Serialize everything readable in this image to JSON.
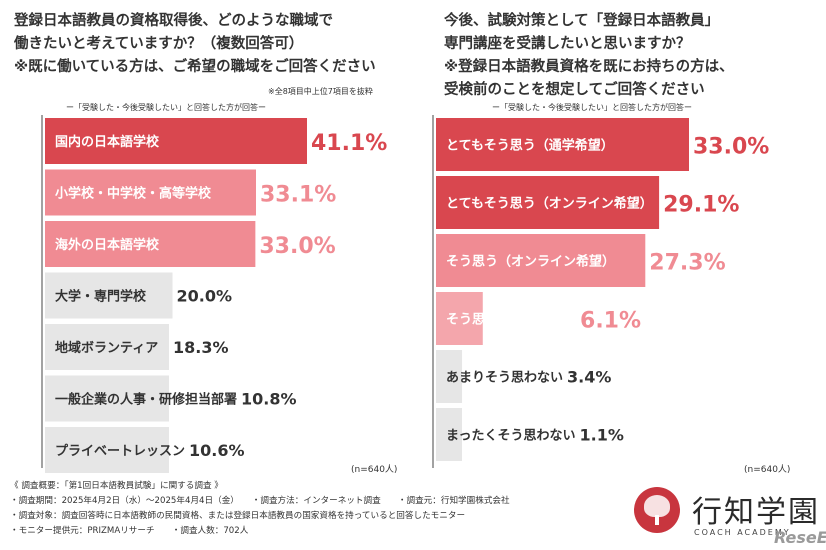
{
  "left": {
    "title_lines": [
      "登録日本語教員の資格取得後、どのような職域で",
      "働きたいと考えていますか？（複数回答可）",
      "※既に働いている方は、ご希望の職域をご回答ください"
    ],
    "note": "※全8項目中上位7項目を抜粋",
    "subtitle": "ー「受験した・今後受験したい」と回答した方が回答ー",
    "n": "(n=640人)"
  },
  "right": {
    "title_lines": [
      "今後、試験対策として「登録日本語教員」",
      "専門講座を受講したいと思いますか？",
      "※登録日本語教員資格を既にお持ちの方は、",
      "受検前のことを想定してご回答ください"
    ],
    "subtitle": "ー「受験した・今後受験したい」と回答した方が回答ー",
    "n": "(n=640人)"
  },
  "chart_data": [
    {
      "type": "bar",
      "orientation": "horizontal",
      "unit": "%",
      "categories": [
        "国内の日本語学校",
        "小学校・中学校・高等学校",
        "海外の日本語学校",
        "大学・専門学校",
        "地域ボランティア",
        "一般企業の人事・研修担当部署",
        "プライベートレッスン"
      ],
      "values": [
        41.1,
        33.1,
        33.0,
        20.0,
        18.3,
        10.8,
        10.6
      ],
      "value_labels": [
        "41.1%",
        "33.1%",
        "33.0%",
        "20.0%",
        "18.3%",
        "10.8%",
        "10.6%"
      ],
      "colors": [
        "#d9474f",
        "#f08b93",
        "#f08b93",
        "#e6e6e6",
        "#e6e6e6",
        "#e6e6e6",
        "#e6e6e6"
      ],
      "label_colors": [
        "#ffffff",
        "#ffffff",
        "#ffffff",
        "#333333",
        "#333333",
        "#333333",
        "#333333"
      ],
      "value_colors": [
        "#d9474f",
        "#f08b93",
        "#f08b93",
        "#333333",
        "#333333",
        "#333333",
        "#333333"
      ],
      "xlim": [
        0,
        41.1
      ]
    },
    {
      "type": "bar",
      "orientation": "horizontal",
      "unit": "%",
      "categories": [
        "とてもそう思う（通学希望）",
        "とてもそう思う（オンライン希望）",
        "そう思う（オンライン希望）",
        "そう思う（通学希望）",
        "あまりそう思わない",
        "まったくそう思わない"
      ],
      "values": [
        33.0,
        29.1,
        27.3,
        6.1,
        3.4,
        1.1
      ],
      "value_labels": [
        "33.0%",
        "29.1%",
        "27.3%",
        "6.1%",
        "3.4%",
        "1.1%"
      ],
      "colors": [
        "#d9474f",
        "#d9474f",
        "#f08b93",
        "#f4a6ac",
        "#e6e6e6",
        "#e6e6e6"
      ],
      "label_colors": [
        "#ffffff",
        "#ffffff",
        "#ffffff",
        "#ffffff",
        "#333333",
        "#333333"
      ],
      "value_colors": [
        "#d9474f",
        "#d9474f",
        "#f08b93",
        "#f08b93",
        "#333333",
        "#333333"
      ],
      "xlim": [
        0,
        33.0
      ]
    }
  ],
  "footer": {
    "lines": [
      "《 調査概要：「第1回日本語教員試験」に関する調査 》",
      "・調査期間：2025年4月2日（水）〜2025年4月4日（金）　　・調査方法：インターネット調査　　・調査元：行知学園株式会社",
      "・調査対象：調査回答時に日本語教師の民間資格、または登録日本語教員の国家資格を持っていると回答したモニター",
      "・モニター提供元：PRIZMAリサーチ　　・調査人数：702人"
    ]
  },
  "brand": {
    "name": "行知学園",
    "sub": "COACH ACADEMY",
    "watermark": "ReseEd"
  }
}
